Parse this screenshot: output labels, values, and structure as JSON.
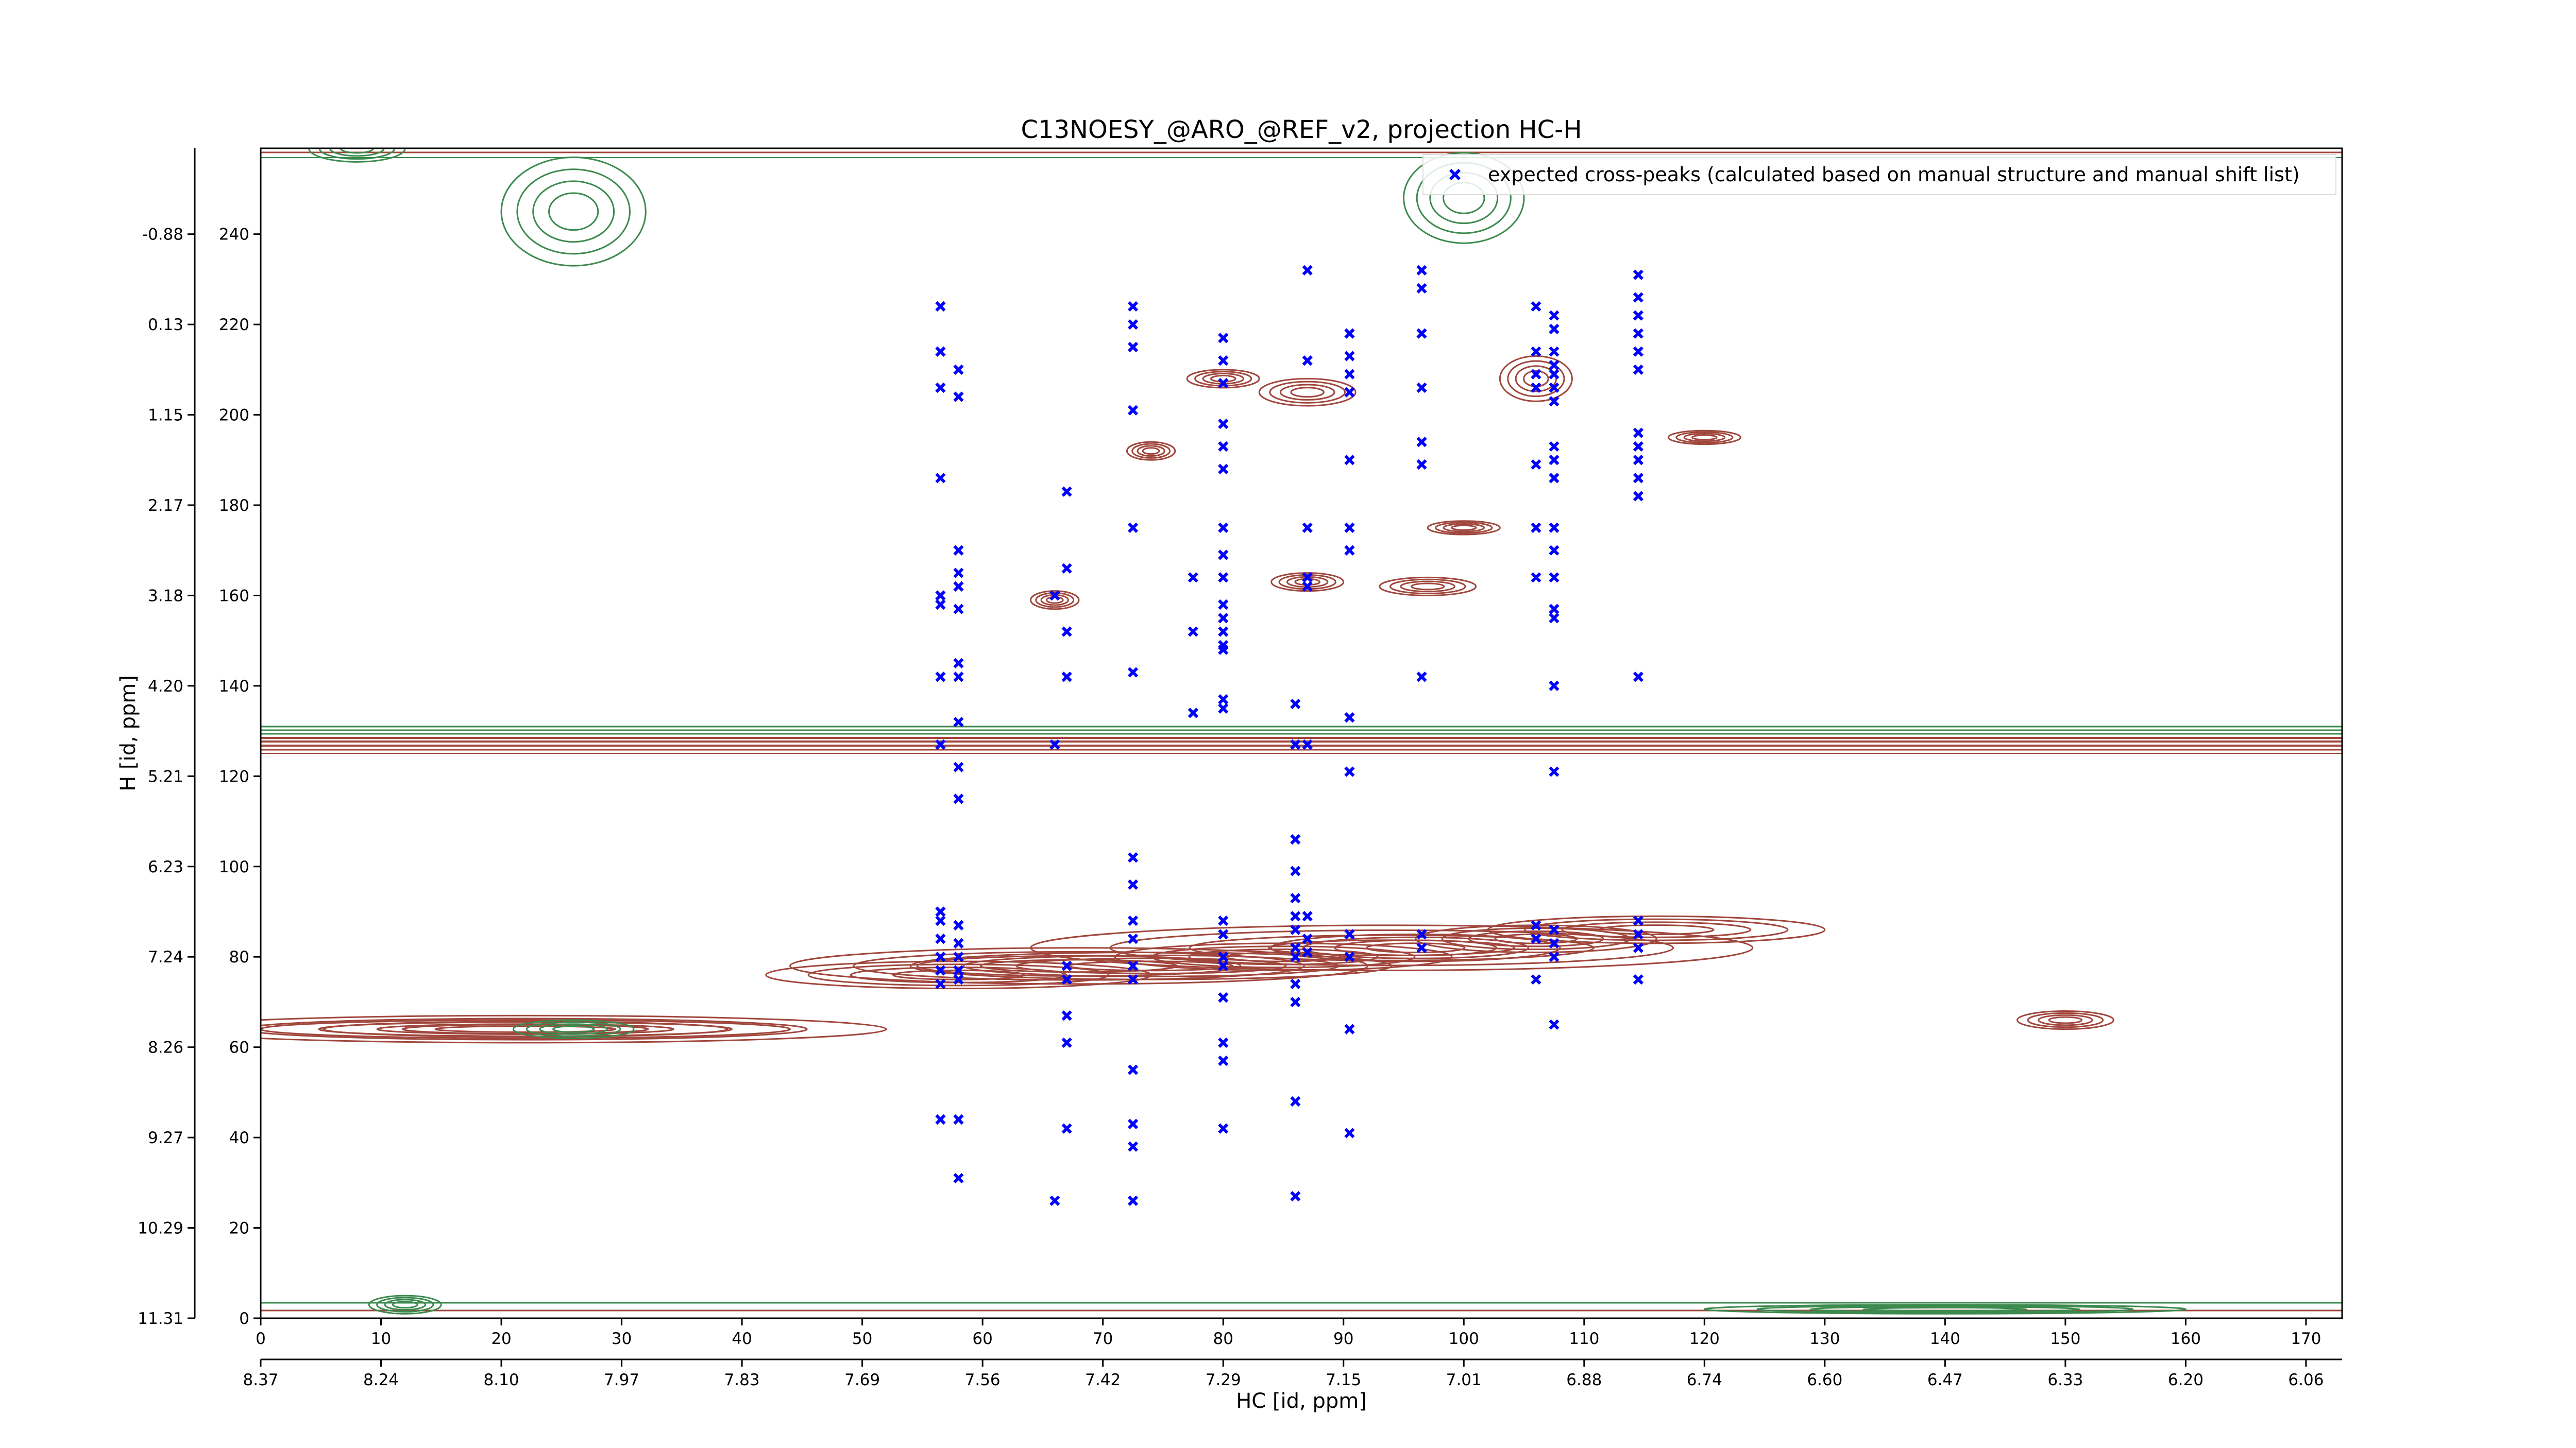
{
  "chart_data": {
    "type": "scatter",
    "title": "C13NOESY_@ARO_@REF_v2, projection HC-H",
    "xlabel": "HC [id, ppm]",
    "ylabel": "H [id, ppm]",
    "xlim": [
      0,
      173
    ],
    "ylim": [
      0,
      259
    ],
    "x_ticks_index": [
      "0",
      "10",
      "20",
      "30",
      "40",
      "50",
      "60",
      "70",
      "80",
      "90",
      "100",
      "110",
      "120",
      "130",
      "140",
      "150",
      "160",
      "170"
    ],
    "x_ticks_ppm": [
      "8.37",
      "8.24",
      "8.10",
      "7.97",
      "7.83",
      "7.69",
      "7.56",
      "7.42",
      "7.29",
      "7.15",
      "7.01",
      "6.88",
      "6.74",
      "6.60",
      "6.47",
      "6.33",
      "6.20",
      "6.06"
    ],
    "y_ticks_index": [
      "0",
      "20",
      "40",
      "60",
      "80",
      "100",
      "120",
      "140",
      "160",
      "180",
      "200",
      "220",
      "240"
    ],
    "y_ticks_ppm": [
      "11.31",
      "10.29",
      "9.27",
      "8.26",
      "7.24",
      "6.23",
      "5.21",
      "4.20",
      "3.18",
      "2.17",
      "1.15",
      "0.13",
      "-0.88"
    ],
    "legend_position": "top-right",
    "colors": {
      "positive_contour": "#a0463c",
      "negative_contour": "#3c8a4e",
      "marker": "#0000ff"
    },
    "series": [
      {
        "name": "expected cross-peaks (calculated based on manual structure and manual shift list)",
        "marker": "x",
        "points": [
          [
            56.5,
            224
          ],
          [
            56.5,
            214
          ],
          [
            56.5,
            206
          ],
          [
            56.5,
            186
          ],
          [
            56.5,
            160
          ],
          [
            56.5,
            158
          ],
          [
            56.5,
            142
          ],
          [
            56.5,
            127
          ],
          [
            56.5,
            90
          ],
          [
            56.5,
            88
          ],
          [
            56.5,
            84
          ],
          [
            56.5,
            80
          ],
          [
            56.5,
            77
          ],
          [
            56.5,
            74
          ],
          [
            56.5,
            44
          ],
          [
            58,
            210
          ],
          [
            58,
            204
          ],
          [
            58,
            170
          ],
          [
            58,
            165
          ],
          [
            58,
            162
          ],
          [
            58,
            157
          ],
          [
            58,
            145
          ],
          [
            58,
            142
          ],
          [
            58,
            132
          ],
          [
            58,
            122
          ],
          [
            58,
            115
          ],
          [
            58,
            87
          ],
          [
            58,
            83
          ],
          [
            58,
            80
          ],
          [
            58,
            77
          ],
          [
            58,
            75
          ],
          [
            58,
            44
          ],
          [
            58,
            31
          ],
          [
            66,
            160
          ],
          [
            66,
            127
          ],
          [
            66,
            26
          ],
          [
            67,
            183
          ],
          [
            67,
            166
          ],
          [
            67,
            152
          ],
          [
            67,
            142
          ],
          [
            67,
            78
          ],
          [
            67,
            75
          ],
          [
            67,
            67
          ],
          [
            67,
            61
          ],
          [
            67,
            42
          ],
          [
            72.5,
            224
          ],
          [
            72.5,
            220
          ],
          [
            72.5,
            215
          ],
          [
            72.5,
            201
          ],
          [
            72.5,
            175
          ],
          [
            72.5,
            143
          ],
          [
            72.5,
            102
          ],
          [
            72.5,
            96
          ],
          [
            72.5,
            88
          ],
          [
            72.5,
            84
          ],
          [
            72.5,
            78
          ],
          [
            72.5,
            75
          ],
          [
            72.5,
            55
          ],
          [
            72.5,
            43
          ],
          [
            72.5,
            38
          ],
          [
            72.5,
            26
          ],
          [
            77.5,
            164
          ],
          [
            77.5,
            152
          ],
          [
            77.5,
            134
          ],
          [
            80,
            217
          ],
          [
            80,
            212
          ],
          [
            80,
            207
          ],
          [
            80,
            198
          ],
          [
            80,
            193
          ],
          [
            80,
            188
          ],
          [
            80,
            175
          ],
          [
            80,
            169
          ],
          [
            80,
            164
          ],
          [
            80,
            158
          ],
          [
            80,
            155
          ],
          [
            80,
            152
          ],
          [
            80,
            149
          ],
          [
            80,
            148
          ],
          [
            80,
            137
          ],
          [
            80,
            135
          ],
          [
            80,
            88
          ],
          [
            80,
            85
          ],
          [
            80,
            80
          ],
          [
            80,
            78
          ],
          [
            80,
            71
          ],
          [
            80,
            61
          ],
          [
            80,
            57
          ],
          [
            80,
            42
          ],
          [
            86,
            136
          ],
          [
            86,
            127
          ],
          [
            86,
            106
          ],
          [
            86,
            99
          ],
          [
            86,
            93
          ],
          [
            86,
            89
          ],
          [
            86,
            86
          ],
          [
            86,
            82
          ],
          [
            86,
            80
          ],
          [
            86,
            74
          ],
          [
            86,
            70
          ],
          [
            86,
            48
          ],
          [
            86,
            27
          ],
          [
            87,
            232
          ],
          [
            87,
            212
          ],
          [
            87,
            175
          ],
          [
            87,
            164
          ],
          [
            87,
            162
          ],
          [
            87,
            127
          ],
          [
            87,
            89
          ],
          [
            87,
            84
          ],
          [
            87,
            81
          ],
          [
            90.5,
            218
          ],
          [
            90.5,
            213
          ],
          [
            90.5,
            209
          ],
          [
            90.5,
            205
          ],
          [
            90.5,
            190
          ],
          [
            90.5,
            175
          ],
          [
            90.5,
            170
          ],
          [
            90.5,
            133
          ],
          [
            90.5,
            121
          ],
          [
            90.5,
            85
          ],
          [
            90.5,
            80
          ],
          [
            90.5,
            64
          ],
          [
            90.5,
            41
          ],
          [
            96.5,
            232
          ],
          [
            96.5,
            228
          ],
          [
            96.5,
            218
          ],
          [
            96.5,
            206
          ],
          [
            96.5,
            194
          ],
          [
            96.5,
            189
          ],
          [
            96.5,
            142
          ],
          [
            96.5,
            85
          ],
          [
            96.5,
            82
          ],
          [
            106,
            224
          ],
          [
            106,
            214
          ],
          [
            106,
            209
          ],
          [
            106,
            206
          ],
          [
            106,
            189
          ],
          [
            106,
            175
          ],
          [
            106,
            164
          ],
          [
            106,
            87
          ],
          [
            106,
            84
          ],
          [
            106,
            75
          ],
          [
            107.5,
            222
          ],
          [
            107.5,
            219
          ],
          [
            107.5,
            214
          ],
          [
            107.5,
            211
          ],
          [
            107.5,
            209
          ],
          [
            107.5,
            206
          ],
          [
            107.5,
            203
          ],
          [
            107.5,
            193
          ],
          [
            107.5,
            190
          ],
          [
            107.5,
            186
          ],
          [
            107.5,
            175
          ],
          [
            107.5,
            170
          ],
          [
            107.5,
            164
          ],
          [
            107.5,
            157
          ],
          [
            107.5,
            155
          ],
          [
            107.5,
            140
          ],
          [
            107.5,
            121
          ],
          [
            107.5,
            86
          ],
          [
            107.5,
            83
          ],
          [
            107.5,
            80
          ],
          [
            107.5,
            65
          ],
          [
            114.5,
            231
          ],
          [
            114.5,
            226
          ],
          [
            114.5,
            222
          ],
          [
            114.5,
            218
          ],
          [
            114.5,
            214
          ],
          [
            114.5,
            210
          ],
          [
            114.5,
            196
          ],
          [
            114.5,
            193
          ],
          [
            114.5,
            190
          ],
          [
            114.5,
            186
          ],
          [
            114.5,
            182
          ],
          [
            114.5,
            142
          ],
          [
            114.5,
            88
          ],
          [
            114.5,
            85
          ],
          [
            114.5,
            82
          ],
          [
            114.5,
            75
          ]
        ]
      }
    ],
    "contours": {
      "type": "contour",
      "positive": [
        {
          "x": 22,
          "y": 64,
          "rx": 30,
          "ry": 3
        },
        {
          "x": 22,
          "y": 64,
          "rx": 22,
          "ry": 2
        },
        {
          "x": 58,
          "y": 76,
          "rx": 16,
          "ry": 3
        },
        {
          "x": 74,
          "y": 78,
          "rx": 20,
          "ry": 3
        },
        {
          "x": 85,
          "y": 80,
          "rx": 14,
          "ry": 3
        },
        {
          "x": 96,
          "y": 82,
          "rx": 12,
          "ry": 3
        },
        {
          "x": 106,
          "y": 84,
          "rx": 10,
          "ry": 3
        },
        {
          "x": 116,
          "y": 86,
          "rx": 14,
          "ry": 3
        },
        {
          "x": 68,
          "y": 78,
          "rx": 24,
          "ry": 4
        },
        {
          "x": 94,
          "y": 82,
          "rx": 30,
          "ry": 5
        },
        {
          "x": 150,
          "y": 66,
          "rx": 4,
          "ry": 2
        },
        {
          "x": 80,
          "y": 208,
          "rx": 3,
          "ry": 2
        },
        {
          "x": 87,
          "y": 205,
          "rx": 4,
          "ry": 3
        },
        {
          "x": 87,
          "y": 163,
          "rx": 3,
          "ry": 2
        },
        {
          "x": 97,
          "y": 162,
          "rx": 4,
          "ry": 2
        },
        {
          "x": 106,
          "y": 208,
          "rx": 3,
          "ry": 5
        },
        {
          "x": 66,
          "y": 159,
          "rx": 2,
          "ry": 2
        },
        {
          "x": 74,
          "y": 192,
          "rx": 2,
          "ry": 2
        },
        {
          "x": 100,
          "y": 175,
          "rx": 3,
          "ry": 1.5
        },
        {
          "x": 120,
          "y": 195,
          "rx": 3,
          "ry": 1.5
        }
      ],
      "negative": [
        {
          "x": 26,
          "y": 64,
          "rx": 5,
          "ry": 2
        },
        {
          "x": 8,
          "y": 259,
          "rx": 4,
          "ry": 3
        },
        {
          "x": 26,
          "y": 245,
          "rx": 6,
          "ry": 12
        },
        {
          "x": 100,
          "y": 248,
          "rx": 5,
          "ry": 10
        },
        {
          "x": 12,
          "y": 3,
          "rx": 3,
          "ry": 2
        },
        {
          "x": 140,
          "y": 2,
          "rx": 20,
          "ry": 1
        }
      ]
    }
  }
}
